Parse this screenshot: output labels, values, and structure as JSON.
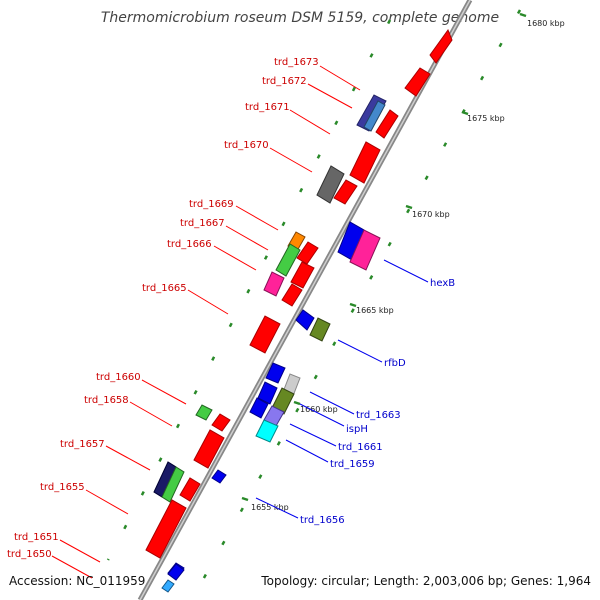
{
  "title": "Thermomicrobium roseum DSM 5159, complete genome",
  "footer": {
    "accession": "Accession: NC_011959",
    "topology": "Topology: circular; Length: 2,003,006 bp; Genes: 1,964"
  },
  "colors": {
    "red": "#ff0000",
    "dark_red_text": "#cc0000",
    "blue_text": "#0000cc",
    "backbone": "#999999",
    "tick": "#228822"
  },
  "scale_labels": [
    "1680 kbp",
    "1675 kbp",
    "1670 kbp",
    "1665 kbp",
    "1660 kbp",
    "1655 kbp"
  ],
  "left_labels": [
    "trd_1673",
    "trd_1672",
    "trd_1671",
    "trd_1670",
    "trd_1669",
    "trd_1667",
    "trd_1666",
    "trd_1665",
    "trd_1660",
    "trd_1658",
    "trd_1657",
    "trd_1655",
    "trd_1651",
    "trd_1650"
  ],
  "right_labels": [
    "hexB",
    "rfbD",
    "trd_1663",
    "ispH",
    "trd_1661",
    "trd_1659",
    "trd_1656"
  ]
}
